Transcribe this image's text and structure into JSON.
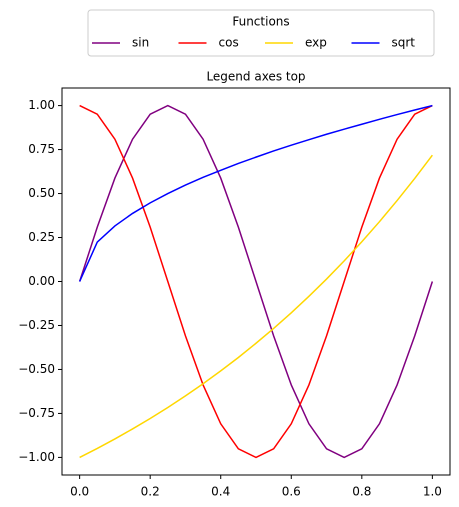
{
  "chart_data": {
    "type": "line",
    "title": "Legend axes top",
    "legend_title": "Functions",
    "legend_position": "top",
    "legend_columns": 4,
    "x": [
      0,
      0.05,
      0.1,
      0.15,
      0.2,
      0.25,
      0.3,
      0.35,
      0.4,
      0.45,
      0.5,
      0.55,
      0.6,
      0.65,
      0.7,
      0.75,
      0.8,
      0.85,
      0.9,
      0.95,
      1
    ],
    "series": [
      {
        "name": "sin",
        "color": "purple",
        "values": [
          0,
          0.309,
          0.588,
          0.809,
          0.951,
          1,
          0.951,
          0.809,
          0.588,
          0.309,
          0,
          -0.309,
          -0.588,
          -0.809,
          -0.951,
          -1,
          -0.951,
          -0.809,
          -0.588,
          -0.309,
          0
        ]
      },
      {
        "name": "cos",
        "color": "red",
        "values": [
          1,
          0.951,
          0.809,
          0.588,
          0.309,
          0,
          -0.309,
          -0.588,
          -0.809,
          -0.951,
          -1,
          -0.951,
          -0.809,
          -0.588,
          -0.309,
          0,
          0.309,
          0.588,
          0.809,
          0.951,
          1
        ]
      },
      {
        "name": "exp",
        "color": "gold",
        "values": [
          -1,
          -0.949,
          -0.895,
          -0.838,
          -0.779,
          -0.716,
          -0.65,
          -0.581,
          -0.508,
          -0.432,
          -0.351,
          -0.267,
          -0.178,
          -0.084,
          0.014,
          0.117,
          0.226,
          0.34,
          0.46,
          0.586,
          0.718
        ]
      },
      {
        "name": "sqrt",
        "color": "blue",
        "values": [
          0,
          0.224,
          0.316,
          0.387,
          0.447,
          0.5,
          0.548,
          0.592,
          0.632,
          0.671,
          0.707,
          0.742,
          0.775,
          0.806,
          0.837,
          0.866,
          0.894,
          0.922,
          0.949,
          0.975,
          1
        ]
      }
    ],
    "xlim": [
      -0.05,
      1.05
    ],
    "xticks": [
      {
        "value": 0,
        "label": "0.0"
      },
      {
        "value": 0.2,
        "label": "0.2"
      },
      {
        "value": 0.4,
        "label": "0.4"
      },
      {
        "value": 0.6,
        "label": "0.6"
      },
      {
        "value": 0.8,
        "label": "0.8"
      },
      {
        "value": 1,
        "label": "1.0"
      }
    ],
    "ylim": [
      -1.1,
      1.1
    ],
    "yticks": [
      {
        "value": -1,
        "label": "−1.00"
      },
      {
        "value": -0.75,
        "label": "−0.75"
      },
      {
        "value": -0.5,
        "label": "−0.50"
      },
      {
        "value": -0.25,
        "label": "−0.25"
      },
      {
        "value": 0,
        "label": "0.00"
      },
      {
        "value": 0.25,
        "label": "0.25"
      },
      {
        "value": 0.5,
        "label": "0.50"
      },
      {
        "value": 0.75,
        "label": "0.75"
      },
      {
        "value": 1,
        "label": "1.00"
      }
    ]
  }
}
